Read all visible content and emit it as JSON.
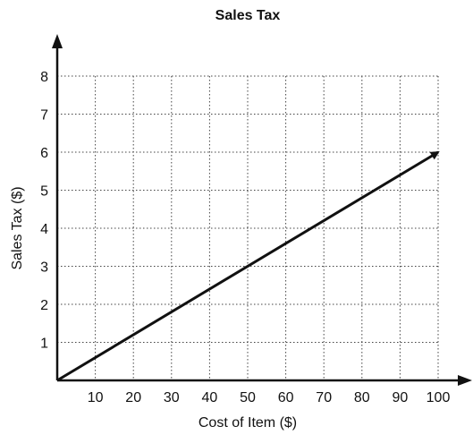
{
  "chart_data": {
    "type": "line",
    "title": "Sales Tax",
    "xlabel": "Cost of Item ($)",
    "ylabel": "Sales Tax ($)",
    "xlim": [
      0,
      100
    ],
    "ylim": [
      0,
      8
    ],
    "x_ticks": [
      "10",
      "20",
      "30",
      "40",
      "50",
      "60",
      "70",
      "80",
      "90",
      "100"
    ],
    "y_ticks": [
      "1",
      "2",
      "3",
      "4",
      "5",
      "6",
      "7",
      "8"
    ],
    "grid": true,
    "series": [
      {
        "x": [
          0,
          100
        ],
        "y": [
          0,
          6
        ],
        "arrow": true
      }
    ]
  }
}
